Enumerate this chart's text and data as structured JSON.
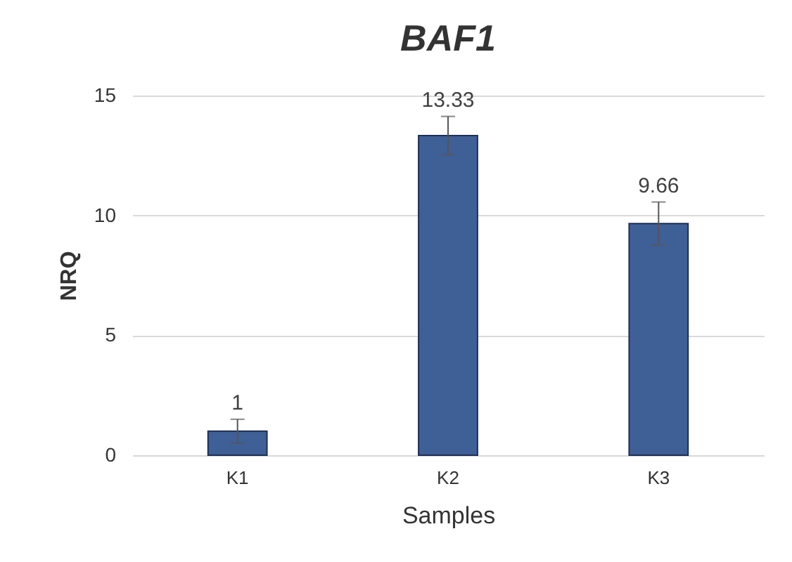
{
  "chart_data": {
    "type": "bar",
    "title": "BAF1",
    "xlabel": "Samples",
    "ylabel": "NRQ",
    "categories": [
      "K1",
      "K2",
      "K3"
    ],
    "values": [
      1,
      13.33,
      9.66
    ],
    "errors": [
      0.5,
      0.8,
      0.9
    ],
    "color": "#3f5f97",
    "ylim": [
      0,
      15
    ],
    "yticks": [
      0,
      5,
      10,
      15
    ],
    "grid": "y",
    "data_labels": true
  }
}
